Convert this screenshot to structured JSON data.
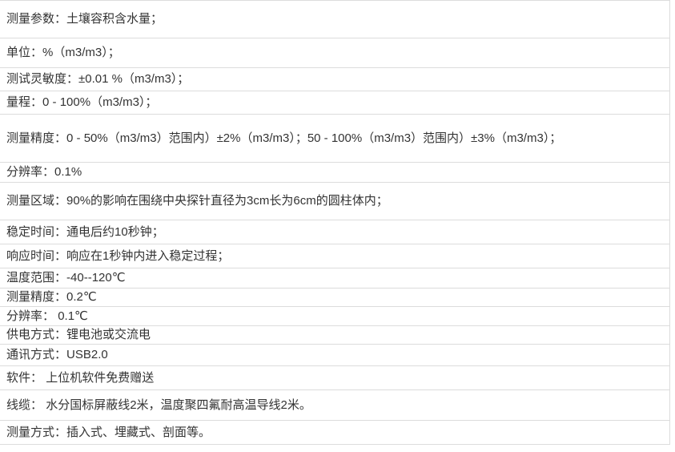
{
  "page": {
    "background_color": "#ffffff",
    "text_color": "#333333",
    "border_color": "#dcdcdc"
  },
  "table": {
    "separator": "：",
    "rows": [
      {
        "label": "测量参数",
        "value": "土壤容积含水量；"
      },
      {
        "label": "单位",
        "value": "%（m3/m3）；"
      },
      {
        "label": "测试灵敏度",
        "value": "±0.01 %（m3/m3）；"
      },
      {
        "label": "量程",
        "value": "0 - 100%（m3/m3）；"
      },
      {
        "label": "测量精度",
        "value": "0 - 50%（m3/m3）范围内）±2%（m3/m3）；50 - 100%（m3/m3）范围内）±3%（m3/m3）；"
      },
      {
        "label": "分辨率",
        "value": "0.1%"
      },
      {
        "label": "测量区域",
        "value": "90%的影响在围绕中央探针直径为3cm长为6cm的圆柱体内；"
      },
      {
        "label": "稳定时间",
        "value": "通电后约10秒钟；"
      },
      {
        "label": "响应时间",
        "value": "响应在1秒钟内进入稳定过程；"
      },
      {
        "label": "温度范围",
        "value": "-40--120℃"
      },
      {
        "label": "测量精度",
        "value": "0.2℃"
      },
      {
        "label": "分辨率",
        "value": " 0.1℃"
      },
      {
        "label": "供电方式",
        "value": "锂电池或交流电"
      },
      {
        "label": "通讯方式",
        "value": "USB2.0"
      },
      {
        "label": "软件",
        "value": " 上位机软件免费赠送"
      },
      {
        "label": "线缆",
        "value": " 水分国标屏蔽线2米，温度聚四氟耐高温导线2米。"
      },
      {
        "label": "测量方式",
        "value": "插入式、埋藏式、剖面等。"
      }
    ]
  }
}
